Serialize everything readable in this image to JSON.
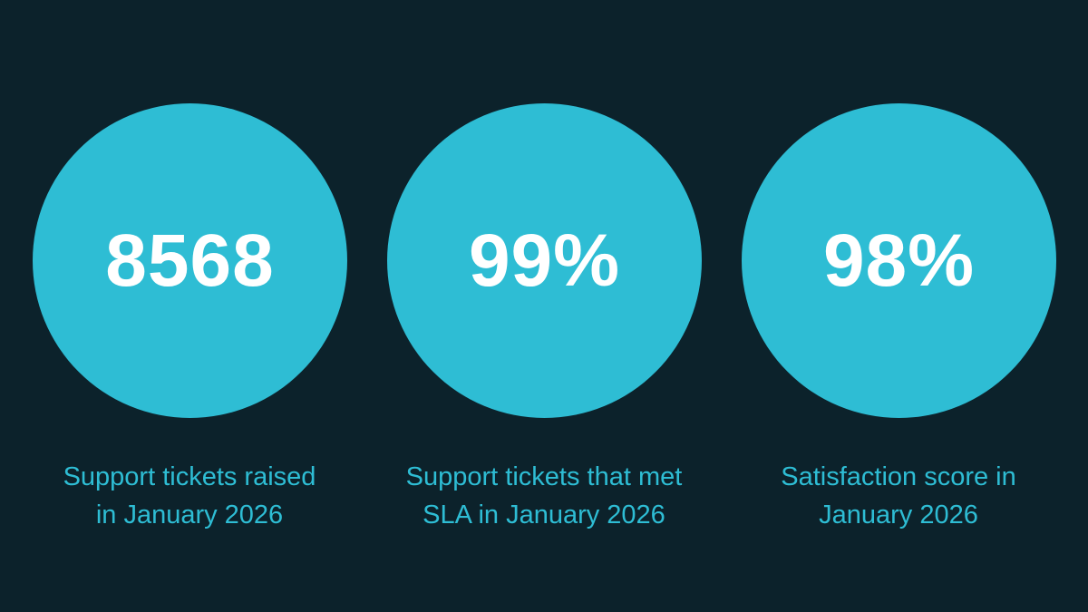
{
  "theme": {
    "background": "#0c222b",
    "accent": "#2ebdd4",
    "value_text": "#ffffff"
  },
  "stats": [
    {
      "value": "8568",
      "caption_lines": [
        "Support tickets raised",
        "in January 2026"
      ]
    },
    {
      "value": "99%",
      "caption_lines": [
        "Support tickets that met",
        "SLA in January 2026"
      ]
    },
    {
      "value": "98%",
      "caption_lines": [
        "Satisfaction score in",
        "January 2026"
      ]
    }
  ]
}
